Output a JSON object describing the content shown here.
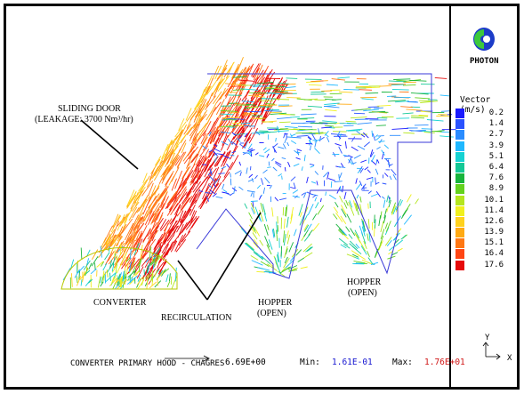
{
  "brand": {
    "name": "PHOTON",
    "logo_icon": "photon-logo-icon"
  },
  "legend": {
    "title": "Vector (m/s)",
    "entries": [
      {
        "value": "0.2",
        "color": "#1a1aff"
      },
      {
        "value": "1.4",
        "color": "#2a52ff"
      },
      {
        "value": "2.7",
        "color": "#2a8cff"
      },
      {
        "value": "3.9",
        "color": "#1fb8ff"
      },
      {
        "value": "5.1",
        "color": "#16d2d2"
      },
      {
        "value": "6.4",
        "color": "#14c896"
      },
      {
        "value": "7.6",
        "color": "#18b43c"
      },
      {
        "value": "8.9",
        "color": "#64d21e"
      },
      {
        "value": "10.1",
        "color": "#b4e61e"
      },
      {
        "value": "11.4",
        "color": "#f0f01e"
      },
      {
        "value": "12.6",
        "color": "#ffd21e"
      },
      {
        "value": "13.9",
        "color": "#ffaa14"
      },
      {
        "value": "15.1",
        "color": "#ff7814"
      },
      {
        "value": "16.4",
        "color": "#ff4614"
      },
      {
        "value": "17.6",
        "color": "#e60a0a"
      }
    ]
  },
  "annotations": {
    "sliding_door_line1": "SLIDING DOOR",
    "sliding_door_line2": "(LEAKAGE: 3700 Nm³/hr)",
    "converter": "CONVERTER",
    "recirculation": "RECIRCULATION",
    "hopper1_line1": "HOPPER",
    "hopper1_line2": "(OPEN)",
    "hopper2_line1": "HOPPER",
    "hopper2_line2": "(OPEN)"
  },
  "footer": {
    "reference_vector": "6.69E+00",
    "min_label": "Min:",
    "min_value": "1.61E-01",
    "max_label": "Max:",
    "max_value": "1.76E+01",
    "caption": "CONVERTER PRIMARY HOOD - CHAGRES"
  },
  "axes": {
    "y": "Y",
    "x": "X"
  }
}
